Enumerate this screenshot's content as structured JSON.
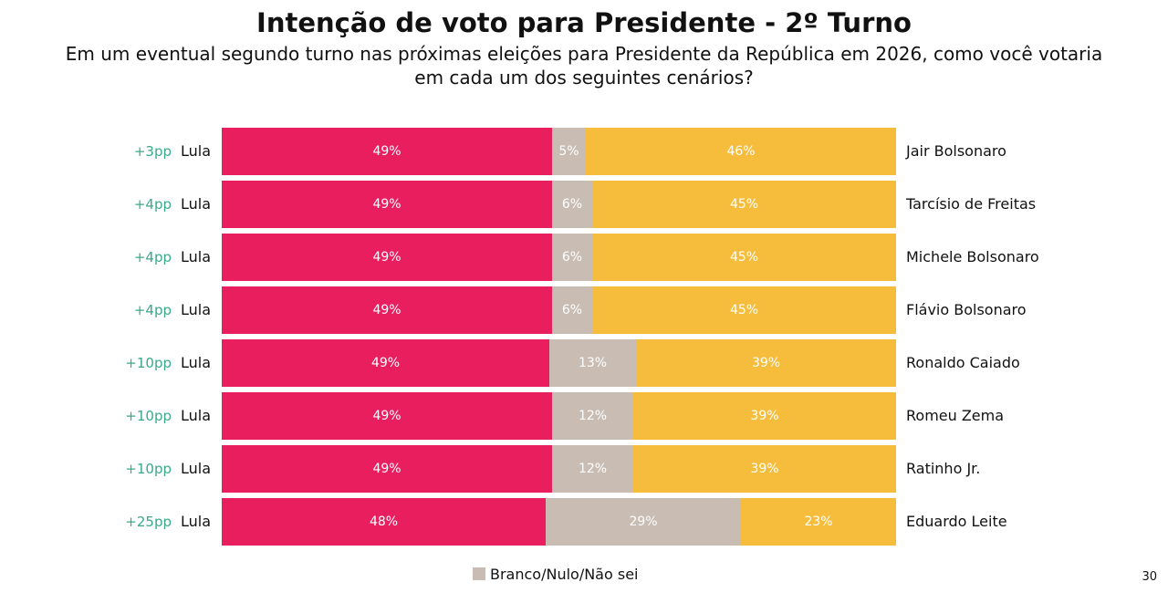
{
  "title": "Intenção de voto para Presidente - 2º Turno",
  "subtitle_line1": "Em um eventual segundo turno nas próximas eleições para Presidente da República em 2026, como você votaria",
  "subtitle_line2": "em cada um dos seguintes cenários?",
  "legend_label": "Branco/Nulo/Não sei",
  "page_number": "30",
  "colors": {
    "lula": "#e91e5e",
    "branco": "#c8bcb3",
    "opponent": "#f6bd3c",
    "diff": "#3aa98a"
  },
  "chart_data": {
    "type": "bar",
    "stacked": "horizontal-100",
    "rows": [
      {
        "diff": "+3pp",
        "left": "Lula",
        "right": "Jair Bolsonaro",
        "values": [
          49,
          5,
          46
        ],
        "labels": [
          "49%",
          "5%",
          "46%"
        ]
      },
      {
        "diff": "+4pp",
        "left": "Lula",
        "right": "Tarcísio de Freitas",
        "values": [
          49,
          6,
          45
        ],
        "labels": [
          "49%",
          "6%",
          "45%"
        ]
      },
      {
        "diff": "+4pp",
        "left": "Lula",
        "right": "Michele Bolsonaro",
        "values": [
          49,
          6,
          45
        ],
        "labels": [
          "49%",
          "6%",
          "45%"
        ]
      },
      {
        "diff": "+4pp",
        "left": "Lula",
        "right": "Flávio Bolsonaro",
        "values": [
          49,
          6,
          45
        ],
        "labels": [
          "49%",
          "6%",
          "45%"
        ]
      },
      {
        "diff": "+10pp",
        "left": "Lula",
        "right": "Ronaldo Caiado",
        "values": [
          49,
          13,
          39
        ],
        "labels": [
          "49%",
          "13%",
          "39%"
        ]
      },
      {
        "diff": "+10pp",
        "left": "Lula",
        "right": "Romeu Zema",
        "values": [
          49,
          12,
          39
        ],
        "labels": [
          "49%",
          "12%",
          "39%"
        ]
      },
      {
        "diff": "+10pp",
        "left": "Lula",
        "right": "Ratinho Jr.",
        "values": [
          49,
          12,
          39
        ],
        "labels": [
          "49%",
          "12%",
          "39%"
        ]
      },
      {
        "diff": "+25pp",
        "left": "Lula",
        "right": "Eduardo Leite",
        "values": [
          48,
          29,
          23
        ],
        "labels": [
          "48%",
          "29%",
          "23%"
        ]
      }
    ],
    "legend": [
      "Branco/Nulo/Não sei"
    ],
    "grid": false
  }
}
